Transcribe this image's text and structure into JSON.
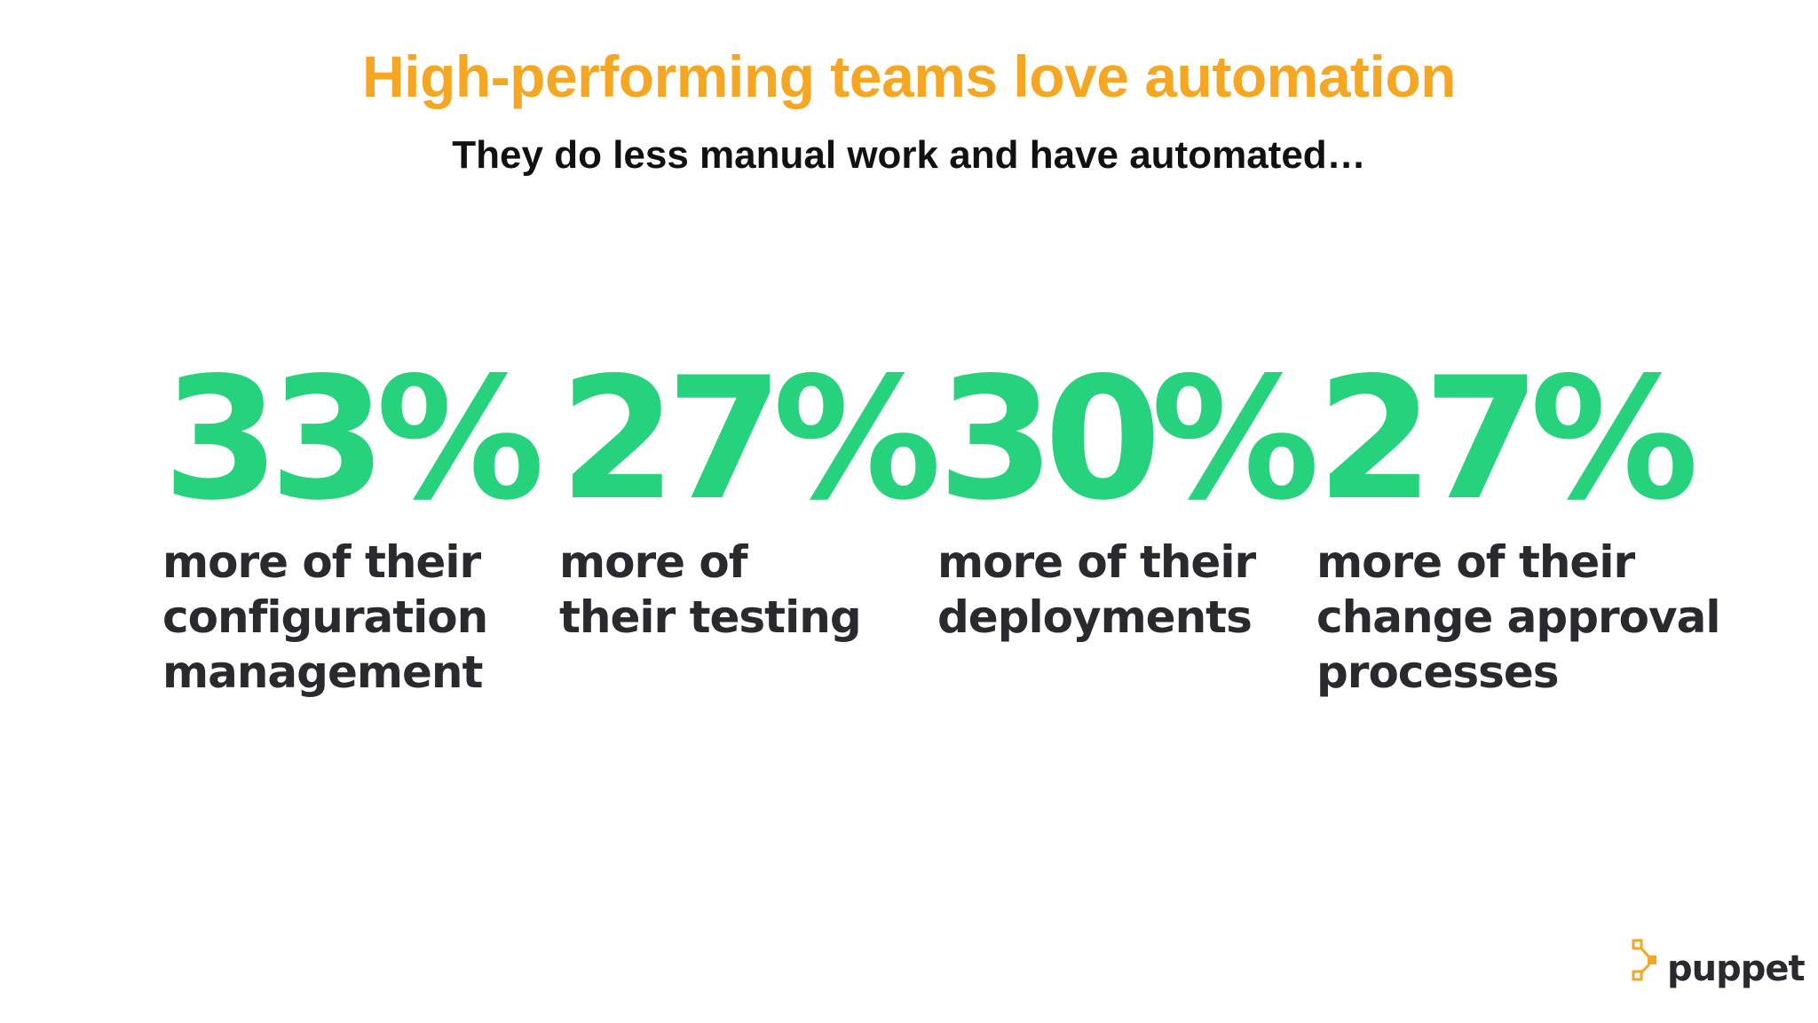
{
  "header": {
    "title": "High-performing teams love automation",
    "subtitle": "They do less manual work and have automated…"
  },
  "stats": [
    {
      "value": "33%",
      "description": "more of their\nconfiguration\nmanagement"
    },
    {
      "value": "27%",
      "description": "more of\ntheir testing"
    },
    {
      "value": "30%",
      "description": "more of their\ndeployments"
    },
    {
      "value": "27%",
      "description": "more of their\nchange approval\nprocesses"
    }
  ],
  "logo": {
    "text": "puppet",
    "icon": "puppet-logo-icon"
  },
  "colors": {
    "title": "#F5A623",
    "accent_green": "#27D27D",
    "text_dark": "#2a2a2e",
    "logo_orange": "#F5A623"
  }
}
